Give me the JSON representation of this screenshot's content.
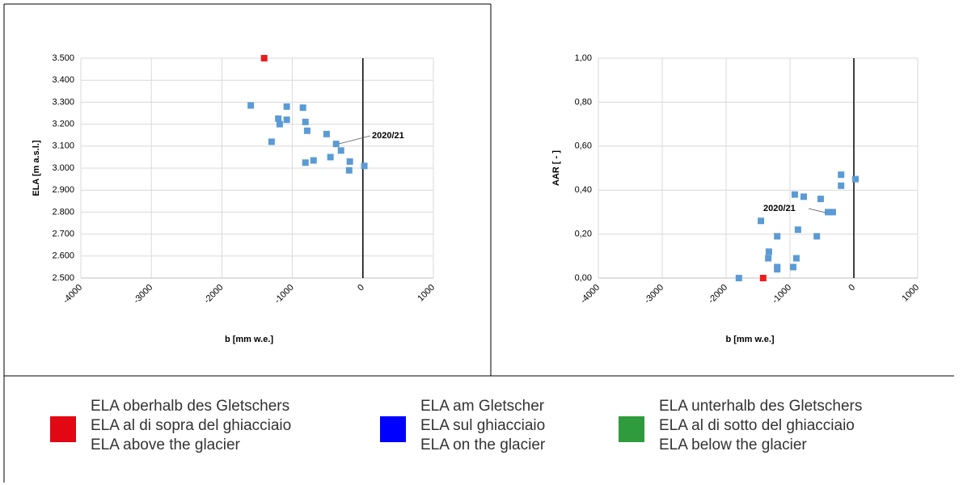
{
  "chart_data": [
    {
      "type": "scatter",
      "ylabel": "ELA [m a.s.l.]",
      "xlabel": "b [mm w.e.]",
      "xlim": [
        -4000,
        1000
      ],
      "xticks": [
        -4000,
        -3000,
        -2000,
        -1000,
        0,
        1000
      ],
      "ylim": [
        2500,
        3500
      ],
      "yticks": [
        {
          "value": 2500,
          "label": "2.500"
        },
        {
          "value": 2600,
          "label": "2.600"
        },
        {
          "value": 2700,
          "label": "2.700"
        },
        {
          "value": 2800,
          "label": "2.800"
        },
        {
          "value": 2900,
          "label": "2.900"
        },
        {
          "value": 3000,
          "label": "3.000"
        },
        {
          "value": 3100,
          "label": "3.100"
        },
        {
          "value": 3200,
          "label": "3.200"
        },
        {
          "value": 3300,
          "label": "3.300"
        },
        {
          "value": 3400,
          "label": "3.400"
        },
        {
          "value": 3500,
          "label": "3.500"
        }
      ],
      "grid": true,
      "zero_line": true,
      "series": [
        {
          "color": "#ee1c1c",
          "x": [
            -1400
          ],
          "values": [
            3500
          ]
        },
        {
          "color": "#5b9bd5",
          "x": [
            -1590,
            -1295,
            -1200,
            -1180,
            -1080,
            -1080,
            -850,
            -815,
            -790,
            -815,
            -700,
            -515,
            -460,
            -380,
            -310,
            -185,
            -195,
            20
          ],
          "values": [
            3285,
            3120,
            3225,
            3200,
            3280,
            3220,
            3275,
            3210,
            3170,
            3025,
            3035,
            3155,
            3050,
            3110,
            3080,
            3030,
            2990,
            3010
          ]
        }
      ],
      "annotation": "2020/21"
    },
    {
      "type": "scatter",
      "ylabel": "AAR [ - ]",
      "xlabel": "b [mm w.e.]",
      "xlim": [
        -4000,
        1000
      ],
      "xticks": [
        -4000,
        -3000,
        -2000,
        -1000,
        0,
        1000
      ],
      "ylim": [
        0,
        1
      ],
      "yticks": [
        {
          "value": 0,
          "label": "0,00"
        },
        {
          "value": 0.2,
          "label": "0,20"
        },
        {
          "value": 0.4,
          "label": "0,40"
        },
        {
          "value": 0.6,
          "label": "0,60"
        },
        {
          "value": 0.8,
          "label": "0,80"
        },
        {
          "value": 1,
          "label": "1,00"
        }
      ],
      "grid": true,
      "zero_line": true,
      "series": [
        {
          "color": "#ee1c1c",
          "x": [
            -1420
          ],
          "values": [
            0
          ]
        },
        {
          "color": "#5b9bd5",
          "x": [
            -1800,
            -1455,
            -1330,
            -1340,
            -1200,
            -1200,
            -1200,
            -925,
            -900,
            -875,
            -950,
            -785,
            -580,
            -520,
            -405,
            -330,
            -200,
            -200,
            25
          ],
          "values": [
            0,
            0.26,
            0.12,
            0.09,
            0.19,
            0.05,
            0.04,
            0.38,
            0.09,
            0.22,
            0.05,
            0.37,
            0.19,
            0.36,
            0.3,
            0.3,
            0.47,
            0.42,
            0.45
          ]
        }
      ],
      "annotation": "2020/21"
    }
  ],
  "legend": [
    {
      "color": "#e30613",
      "lines": [
        "ELA oberhalb des Gletschers",
        "ELA al di sopra del ghiacciaio",
        "ELA above the glacier"
      ]
    },
    {
      "color": "#0000ff",
      "lines": [
        "ELA am Gletscher",
        "ELA sul ghiacciaio",
        "ELA on the glacier"
      ]
    },
    {
      "color": "#2e9c3c",
      "lines": [
        "ELA unterhalb des Gletschers",
        "ELA al di sotto del ghiacciaio",
        "ELA below the glacier"
      ]
    }
  ]
}
